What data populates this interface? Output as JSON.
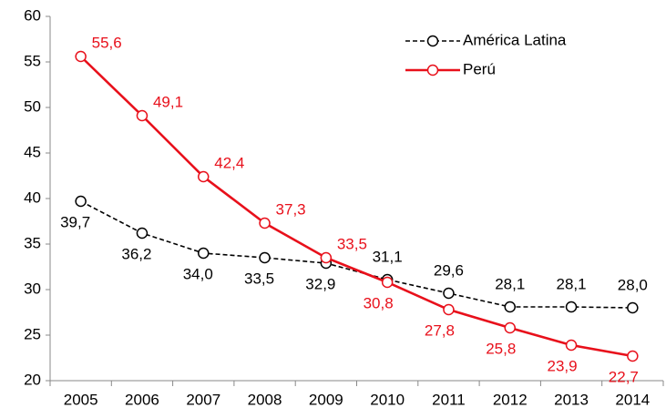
{
  "chart_data": {
    "type": "line",
    "categories": [
      "2005",
      "2006",
      "2007",
      "2008",
      "2009",
      "2010",
      "2011",
      "2012",
      "2013",
      "2014"
    ],
    "series": [
      {
        "name": "América Latina",
        "color": "#000000",
        "dashed": true,
        "values": [
          39.7,
          36.2,
          34.0,
          33.5,
          32.9,
          31.1,
          29.6,
          28.1,
          28.1,
          28.0
        ],
        "value_labels": [
          "39,7",
          "36,2",
          "34,0",
          "33,5",
          "32,9",
          "31,1",
          "29,6",
          "28,1",
          "28,1",
          "28,0"
        ]
      },
      {
        "name": "Perú",
        "color": "#e8101b",
        "dashed": false,
        "values": [
          55.6,
          49.1,
          42.4,
          37.3,
          33.5,
          30.8,
          27.8,
          25.8,
          23.9,
          22.7
        ],
        "value_labels": [
          "55,6",
          "49,1",
          "42,4",
          "37,3",
          "33,5",
          "30,8",
          "27,8",
          "25,8",
          "23,9",
          "22,7"
        ]
      }
    ],
    "ylim": [
      20,
      60
    ],
    "yticks": [
      20,
      25,
      30,
      35,
      40,
      45,
      50,
      55,
      60
    ],
    "grid": false,
    "legend": "upper right"
  }
}
